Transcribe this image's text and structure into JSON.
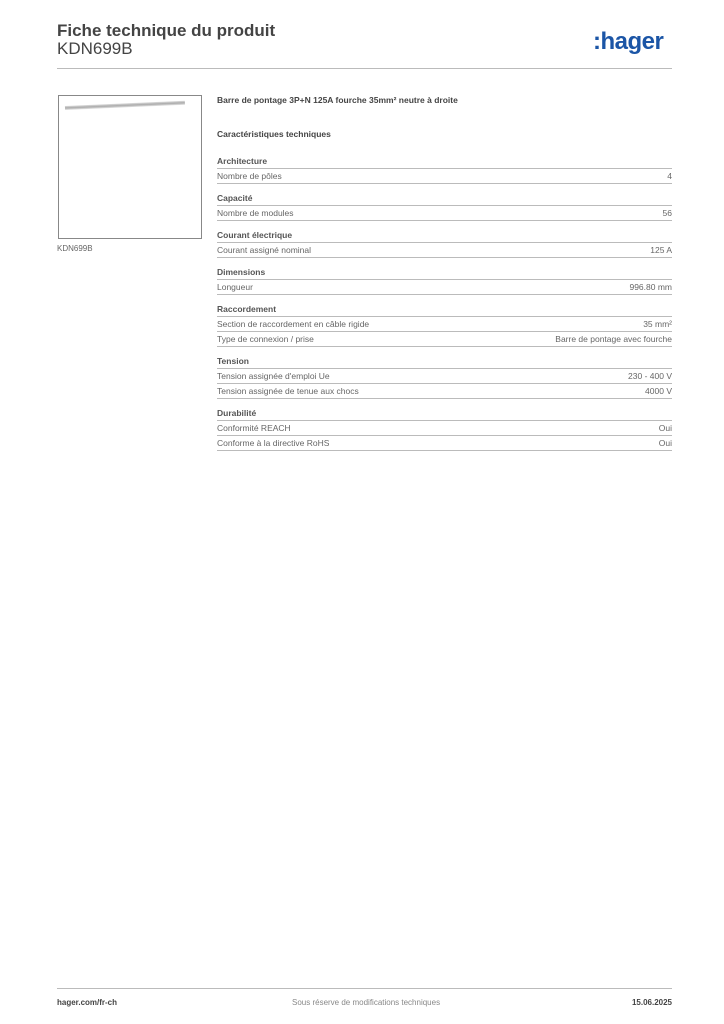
{
  "header": {
    "title": "Fiche technique du produit",
    "reference": "KDN699B",
    "logo": ":hager",
    "brand_color": "#1b55a6"
  },
  "product": {
    "image_caption": "KDN699B",
    "name": "Barre de pontage 3P+N 125A fourche 35mm² neutre à droite",
    "section_title": "Caractéristiques techniques"
  },
  "groups": [
    {
      "title": "Architecture",
      "rows": [
        {
          "label": "Nombre de pôles",
          "value": "4"
        }
      ]
    },
    {
      "title": "Capacité",
      "rows": [
        {
          "label": "Nombre de modules",
          "value": "56"
        }
      ]
    },
    {
      "title": "Courant électrique",
      "rows": [
        {
          "label": "Courant assigné nominal",
          "value": "125 A"
        }
      ]
    },
    {
      "title": "Dimensions",
      "rows": [
        {
          "label": "Longueur",
          "value": "996.80 mm"
        }
      ]
    },
    {
      "title": "Raccordement",
      "rows": [
        {
          "label": "Section de raccordement en câble rigide",
          "value": "35 mm²"
        },
        {
          "label": "Type de connexion / prise",
          "value": "Barre de pontage avec fourche"
        }
      ]
    },
    {
      "title": "Tension",
      "rows": [
        {
          "label": "Tension assignée d'emploi Ue",
          "value": "230 - 400 V"
        },
        {
          "label": "Tension assignée de tenue aux chocs",
          "value": "4000 V"
        }
      ]
    },
    {
      "title": "Durabilité",
      "rows": [
        {
          "label": "Conformité REACH",
          "value": "Oui"
        },
        {
          "label": "Conforme à la directive RoHS",
          "value": "Oui"
        }
      ]
    }
  ],
  "footer": {
    "website": "hager.com/fr-ch",
    "disclaimer": "Sous réserve de modifications techniques",
    "date": "15.06.2025"
  }
}
